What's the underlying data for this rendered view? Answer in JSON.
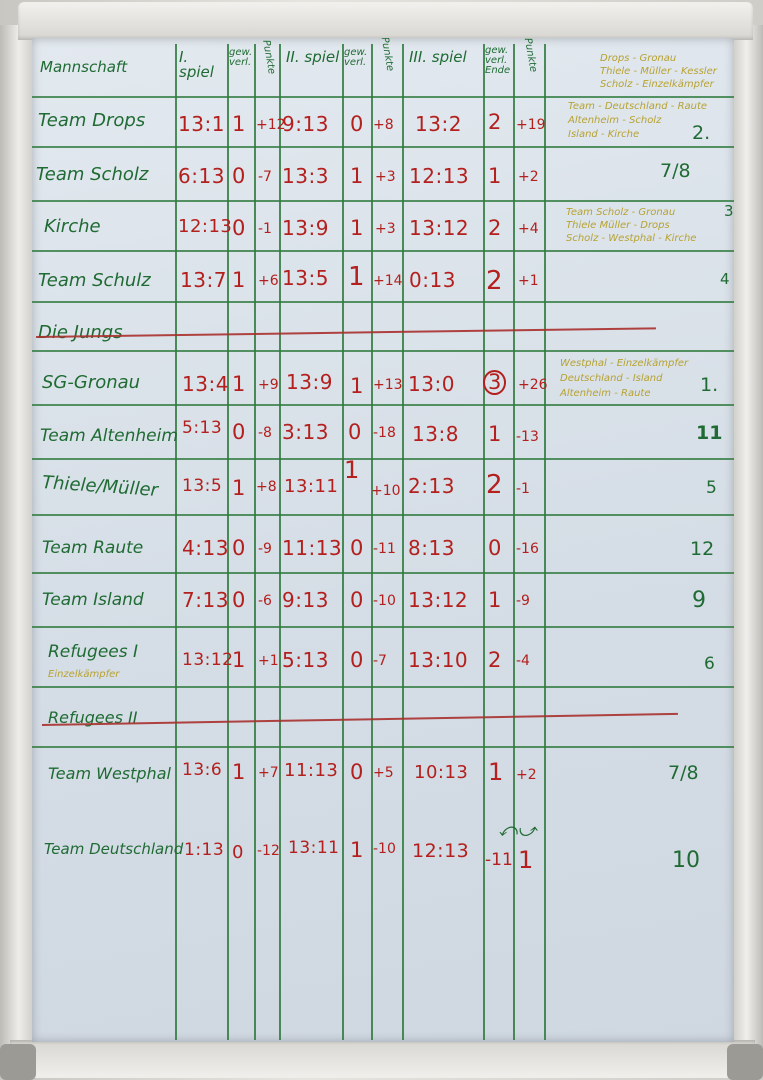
{
  "header": {
    "team": "Mannschaft",
    "spiel1": "I. spiel",
    "gew1": "gew. verl.",
    "punkte1": "Punkte",
    "spiel2": "II. spiel",
    "gew2": "gew. verl.",
    "punkte2": "Punkte",
    "spiel3": "III. spiel",
    "gew3": "gew. verl. Ende",
    "punkte3": "Punkte"
  },
  "rows": [
    {
      "team": "Team Drops",
      "s1": "13:1",
      "g1": "1",
      "p1": "+12",
      "s2": "9:13",
      "g2": "0",
      "p2": "+8",
      "s3": "13:2",
      "g3": "2",
      "p3": "+19",
      "rank": "2."
    },
    {
      "team": "Team Scholz",
      "s1": "6:13",
      "g1": "0",
      "p1": "-7",
      "s2": "13:3",
      "g2": "1",
      "p2": "+3",
      "s3": "12:13",
      "g3": "1",
      "p3": "+2",
      "rank": "7/8"
    },
    {
      "team": "Kirche",
      "s1": "12:13",
      "g1": "0",
      "p1": "-1",
      "s2": "13:9",
      "g2": "1",
      "p2": "+3",
      "s3": "13:12",
      "g3": "2",
      "p3": "+4",
      "rank": "3"
    },
    {
      "team": "Team Schulz",
      "s1": "13:7",
      "g1": "1",
      "p1": "+6",
      "s2": "13:5",
      "g2": "1",
      "p2": "+14",
      "s3": "0:13",
      "g3": "2",
      "p3": "+1",
      "rank": "4"
    },
    {
      "team": "Die Jungs",
      "struck": true
    },
    {
      "team": "SG-Gronau",
      "s1": "13:4",
      "g1": "1",
      "p1": "+9",
      "s2": "13:9",
      "g2": "1",
      "p2": "+13",
      "s3": "13:0",
      "g3": "3",
      "p3": "+26",
      "rank": "1."
    },
    {
      "team": "Team Altenheim",
      "s1": "5:13",
      "g1": "0",
      "p1": "-8",
      "s2": "3:13",
      "g2": "0",
      "p2": "-18",
      "s3": "13:8",
      "g3": "1",
      "p3": "-13",
      "rank": "11"
    },
    {
      "team": "Thiele/Müller",
      "s1": "13:5",
      "g1": "1",
      "p1": "+8",
      "s2": "13:11",
      "g2": "1",
      "p2": "+10",
      "s3": "2:13",
      "g3": "2",
      "p3": "-1",
      "rank": "5"
    },
    {
      "team": "Team Raute",
      "s1": "4:13",
      "g1": "0",
      "p1": "-9",
      "s2": "11:13",
      "g2": "0",
      "p2": "-11",
      "s3": "8:13",
      "g3": "0",
      "p3": "-16",
      "rank": "12"
    },
    {
      "team": "Team Island",
      "s1": "7:13",
      "g1": "0",
      "p1": "-6",
      "s2": "9:13",
      "g2": "0",
      "p2": "-10",
      "s3": "13:12",
      "g3": "1",
      "p3": "-9",
      "rank": "9"
    },
    {
      "team": "Refugees I",
      "sub": "Einzelkämpfer",
      "s1": "13:12",
      "g1": "1",
      "p1": "+1",
      "s2": "5:13",
      "g2": "0",
      "p2": "-7",
      "s3": "13:10",
      "g3": "2",
      "p3": "-4",
      "rank": "6"
    },
    {
      "team": "Refugees II",
      "struck": true
    },
    {
      "team": "Team Westphal",
      "s1": "13:6",
      "g1": "1",
      "p1": "+7",
      "s2": "11:13",
      "g2": "0",
      "p2": "+5",
      "s3": "10:13",
      "g3": "1",
      "p3": "+2",
      "rank": "7/8"
    },
    {
      "team": "Team Deutschland",
      "s1": "1:13",
      "g1": "0",
      "p1": "-12",
      "s2": "13:11",
      "g2": "1",
      "p2": "-10",
      "s3": "12:13",
      "g3": "1",
      "p3": "-11",
      "rank": "10"
    }
  ],
  "notes": {
    "n1": [
      "Drops - Gronau",
      "Thiele - Müller - Kessler",
      "Scholz - Einzelkämpfer"
    ],
    "n2": [
      "Team - Deutschland - Raute",
      "Altenheim - Scholz",
      "Island - Kirche"
    ],
    "n3": [
      "Team Scholz - Gronau",
      "Thiele Müller - Drops",
      "Scholz - Westphal - Kirche"
    ],
    "n4": [
      "Westphal - Einzelkämpfer",
      "Deutschland - Island",
      "Altenheim - Raute"
    ]
  },
  "colors": {
    "green": "#1f6b33",
    "red": "#b3201d",
    "ochre": "#b7a232",
    "board": "#d9e0e8"
  }
}
